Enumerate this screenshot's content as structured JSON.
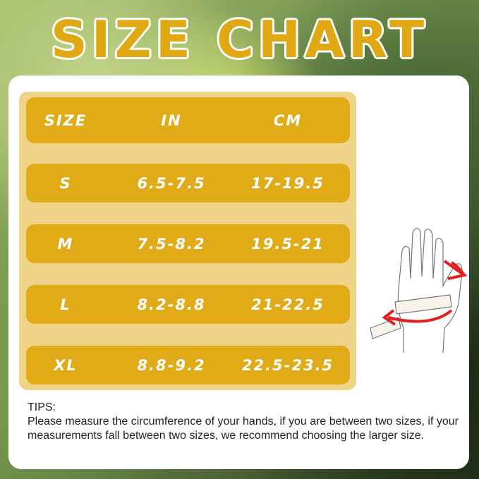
{
  "title": "SIZE CHART",
  "table": {
    "headers": [
      "SIZE",
      "IN",
      "CM"
    ],
    "rows": [
      [
        "S",
        "6.5-7.5",
        "17-19.5"
      ],
      [
        "M",
        "7.5-8.2",
        "19.5-21"
      ],
      [
        "L",
        "8.2-8.8",
        "21-22.5"
      ],
      [
        "XL",
        "8.8-9.2",
        "22.5-23.5"
      ]
    ]
  },
  "tips": {
    "label": "TIPS:",
    "text": "Please measure the circumference of your hands, if you are between two sizes,  if your measurements fall between two sizes, we recommend choosing the larger size."
  },
  "colors": {
    "row": "#e0ab17",
    "panel": "#efd386",
    "arrow": "#e02020"
  },
  "icons": {
    "hand": "hand-measurement-illustration"
  }
}
